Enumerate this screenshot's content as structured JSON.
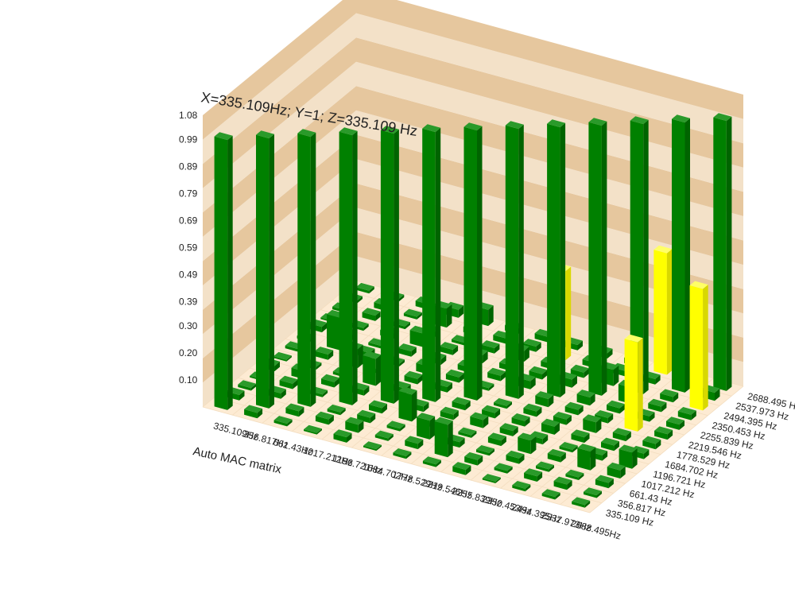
{
  "readout": "X=335.109Hz; Y=1; Z=335.109 Hz",
  "chart_data": {
    "type": "bar3d",
    "xlabel": "Auto MAC matrix",
    "ylabel": "",
    "zlabel": "",
    "y_tick_labels": [
      "1.08",
      "0.99",
      "0.89",
      "0.79",
      "0.69",
      "0.59",
      "0.49",
      "0.39",
      "0.30",
      "0.20",
      "0.10"
    ],
    "y_ticks": [
      1.08,
      0.99,
      0.89,
      0.79,
      0.69,
      0.59,
      0.49,
      0.39,
      0.3,
      0.2,
      0.1
    ],
    "zlim": [
      0,
      1.08
    ],
    "x_tick_labels": [
      "335.109Hz",
      "356.817Hz",
      "661.43Hz",
      "1017.212Hz",
      "1196.721Hz",
      "1684.702Hz",
      "1778.529Hz",
      "2219.546Hz",
      "2255.839Hz",
      "2350.453Hz",
      "2494.395Hz",
      "2537.973Hz",
      "2688.495Hz"
    ],
    "z_tick_labels": [
      "335.109 Hz",
      "356.817 Hz",
      "661.43 Hz",
      "1017.212 Hz",
      "1196.721 Hz",
      "1684.702 Hz",
      "1778.529 Hz",
      "2219.546 Hz",
      "2255.839 Hz",
      "2350.453 Hz",
      "2494.395 Hz",
      "2537.973 Hz",
      "2688.495 Hz"
    ],
    "colors": {
      "bar": "#008000",
      "bar_side": "#006400",
      "bar_top": "#2a9a2a",
      "highlight": "#ffff00",
      "highlight_side": "#d8d800",
      "highlight_top": "#ffff66",
      "wall_light": "#f3e1c8",
      "wall_dark": "#e6c79e",
      "floor": "#fdebd3",
      "floor_line": "#f3ddbf"
    },
    "matrix": [
      [
        1.0,
        0.02,
        0.01,
        0.0,
        0.02,
        0.0,
        0.01,
        0.01,
        0.02,
        0.0,
        0.01,
        0.01,
        0.01
      ],
      [
        0.02,
        1.0,
        0.02,
        0.02,
        0.03,
        0.01,
        0.02,
        0.12,
        0.02,
        0.01,
        0.02,
        0.02,
        0.01
      ],
      [
        0.01,
        0.02,
        1.0,
        0.01,
        0.02,
        0.01,
        0.07,
        0.02,
        0.01,
        0.02,
        0.01,
        0.01,
        0.02
      ],
      [
        0.0,
        0.02,
        0.01,
        1.0,
        0.02,
        0.1,
        0.01,
        0.01,
        0.02,
        0.05,
        0.02,
        0.07,
        0.03
      ],
      [
        0.02,
        0.03,
        0.02,
        0.02,
        1.0,
        0.02,
        0.02,
        0.03,
        0.02,
        0.02,
        0.01,
        0.02,
        0.06
      ],
      [
        0.0,
        0.01,
        0.01,
        0.1,
        0.02,
        1.0,
        0.02,
        0.02,
        0.02,
        0.03,
        0.02,
        0.02,
        0.02
      ],
      [
        0.01,
        0.02,
        0.07,
        0.01,
        0.02,
        0.02,
        1.0,
        0.01,
        0.02,
        0.02,
        0.04,
        0.02,
        0.02
      ],
      [
        0.01,
        0.12,
        0.02,
        0.01,
        0.03,
        0.02,
        0.01,
        1.0,
        0.03,
        0.02,
        0.02,
        0.33,
        0.02
      ],
      [
        0.02,
        0.02,
        0.01,
        0.02,
        0.02,
        0.02,
        0.02,
        0.03,
        1.0,
        0.03,
        0.02,
        0.02,
        0.02
      ],
      [
        0.0,
        0.01,
        0.02,
        0.05,
        0.02,
        0.03,
        0.02,
        0.02,
        0.03,
        1.0,
        0.06,
        0.02,
        0.02
      ],
      [
        0.01,
        0.02,
        0.01,
        0.02,
        0.01,
        0.02,
        0.04,
        0.02,
        0.02,
        0.06,
        1.0,
        0.02,
        0.45
      ],
      [
        0.01,
        0.02,
        0.01,
        0.07,
        0.02,
        0.02,
        0.02,
        0.33,
        0.02,
        0.02,
        0.02,
        1.0,
        0.03
      ],
      [
        0.01,
        0.01,
        0.02,
        0.03,
        0.06,
        0.02,
        0.02,
        0.02,
        0.02,
        0.02,
        0.45,
        0.03,
        1.0
      ]
    ],
    "highlight_threshold": 0.3,
    "legend": "none",
    "grid": true
  }
}
